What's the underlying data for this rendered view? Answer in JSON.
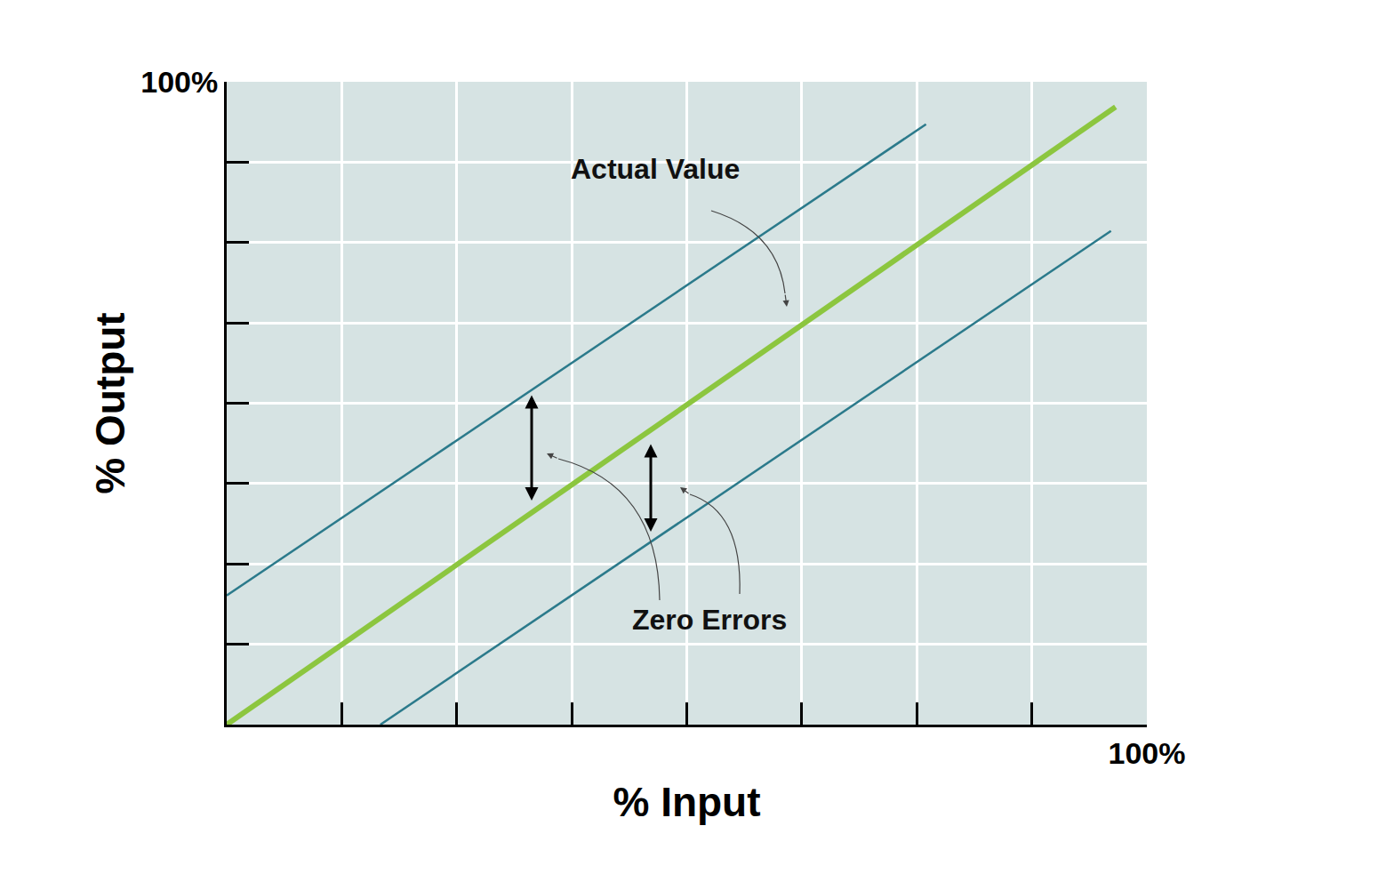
{
  "chart_data": {
    "type": "line",
    "xlabel": "% Input",
    "ylabel": "% Output",
    "xlim": [
      0,
      100
    ],
    "ylim": [
      0,
      100
    ],
    "xticks": [
      {
        "value": 12.5,
        "label": null
      },
      {
        "value": 25,
        "label": null
      },
      {
        "value": 37.5,
        "label": null
      },
      {
        "value": 50,
        "label": null
      },
      {
        "value": 62.5,
        "label": null
      },
      {
        "value": 75,
        "label": null
      },
      {
        "value": 87.5,
        "label": null
      },
      {
        "value": 100,
        "label": "100%"
      }
    ],
    "yticks": [
      {
        "value": 12.5,
        "label": null
      },
      {
        "value": 25,
        "label": null
      },
      {
        "value": 37.5,
        "label": null
      },
      {
        "value": 50,
        "label": null
      },
      {
        "value": 62.5,
        "label": null
      },
      {
        "value": 75,
        "label": null
      },
      {
        "value": 87.5,
        "label": null
      },
      {
        "value": 100,
        "label": "100%"
      }
    ],
    "grid": true,
    "series": [
      {
        "color": "#2b7a8b",
        "x": [
          0,
          76.0
        ],
        "values": [
          20.1,
          93.4
        ]
      },
      {
        "color": "#8cc63f",
        "x": [
          0,
          96.6
        ],
        "values": [
          0,
          96.1
        ]
      },
      {
        "color": "#2b7a8b",
        "x": [
          16.7,
          96.1
        ],
        "values": [
          0,
          76.8
        ]
      }
    ],
    "annotations": [
      "Actual Value",
      "Zero Errors"
    ]
  }
}
